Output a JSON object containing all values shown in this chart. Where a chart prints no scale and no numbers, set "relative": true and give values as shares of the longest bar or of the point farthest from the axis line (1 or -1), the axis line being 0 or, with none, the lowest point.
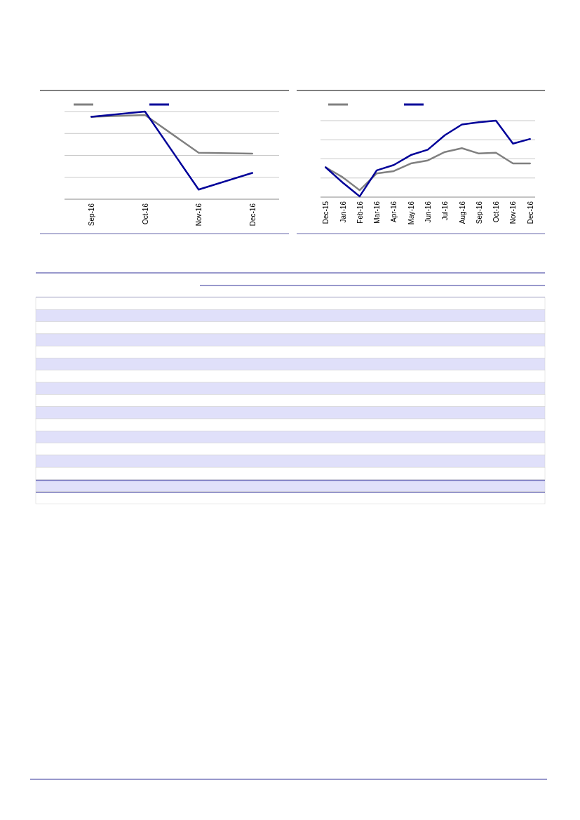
{
  "chart_data": [
    {
      "type": "line",
      "relative": true,
      "grid": "y",
      "categories": [
        "Sep-16",
        "Oct-16",
        "Nov-16",
        "Dec-16"
      ],
      "series": [
        {
          "color": "#808080",
          "values": [
            0.94,
            0.96,
            0.53,
            0.52
          ]
        },
        {
          "color": "#000099",
          "values": [
            0.94,
            1,
            0.11,
            0.3
          ]
        }
      ]
    },
    {
      "type": "line",
      "relative": true,
      "grid": "y",
      "categories": [
        "Dec-15",
        "Jan-16",
        "Feb-16",
        "Mar-16",
        "Apr-16",
        "May-16",
        "Jun-16",
        "Jul-16",
        "Aug-16",
        "Sep-16",
        "Oct-16",
        "Nov-16",
        "Dec-16"
      ],
      "series": [
        {
          "color": "#808080",
          "values": [
            0.39,
            0.26,
            0.09,
            0.31,
            0.34,
            0.44,
            0.48,
            0.59,
            0.64,
            0.57,
            0.58,
            0.44,
            0.44
          ]
        },
        {
          "color": "#000099",
          "values": [
            0.39,
            0.19,
            0.01,
            0.35,
            0.42,
            0.55,
            0.62,
            0.81,
            0.95,
            0.98,
            1,
            0.7,
            0.76
          ]
        }
      ]
    }
  ]
}
